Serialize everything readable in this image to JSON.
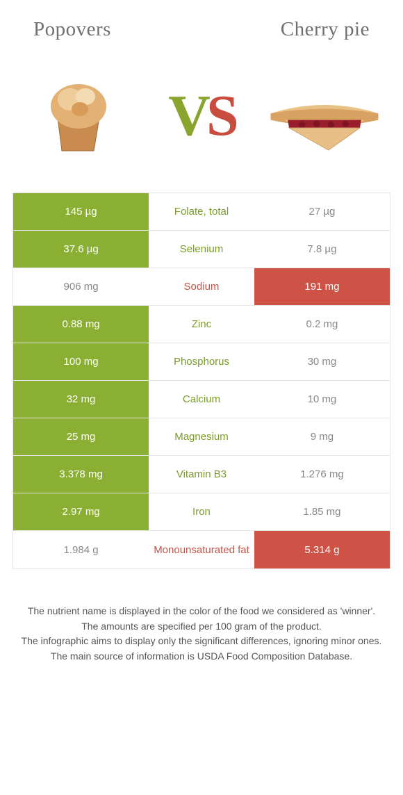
{
  "colors": {
    "green": "#8aaf33",
    "green_text": "#7b9c29",
    "red": "#cf5246",
    "red_text": "#c55347",
    "title_gray": "#707070",
    "body_text": "#555555",
    "border": "#e6e6e6",
    "background": "#ffffff"
  },
  "header": {
    "left": "Popovers",
    "right": "Cherry pie"
  },
  "vs": {
    "v": "V",
    "s": "S"
  },
  "rows": [
    {
      "left": "145 µg",
      "label": "Folate, total",
      "right": "27 µg",
      "winner": "left"
    },
    {
      "left": "37.6 µg",
      "label": "Selenium",
      "right": "7.8 µg",
      "winner": "left"
    },
    {
      "left": "906 mg",
      "label": "Sodium",
      "right": "191 mg",
      "winner": "right"
    },
    {
      "left": "0.88 mg",
      "label": "Zinc",
      "right": "0.2 mg",
      "winner": "left"
    },
    {
      "left": "100 mg",
      "label": "Phosphorus",
      "right": "30 mg",
      "winner": "left"
    },
    {
      "left": "32 mg",
      "label": "Calcium",
      "right": "10 mg",
      "winner": "left"
    },
    {
      "left": "25 mg",
      "label": "Magnesium",
      "right": "9 mg",
      "winner": "left"
    },
    {
      "left": "3.378 mg",
      "label": "Vitamin B3",
      "right": "1.276 mg",
      "winner": "left"
    },
    {
      "left": "2.97 mg",
      "label": "Iron",
      "right": "1.85 mg",
      "winner": "left"
    },
    {
      "left": "1.984 g",
      "label": "Monounsaturated fat",
      "right": "5.314 g",
      "winner": "right"
    }
  ],
  "footer": {
    "line1": "The nutrient name is displayed in the color of the food we considered as 'winner'.",
    "line2": "The amounts are specified per 100 gram of the product.",
    "line3": "The infographic aims to display only the significant differences, ignoring minor ones.",
    "line4": "The main source of information is USDA Food Composition Database."
  }
}
